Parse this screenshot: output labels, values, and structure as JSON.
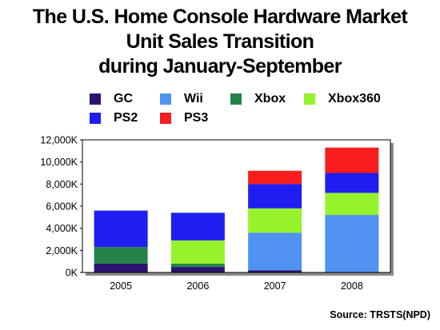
{
  "title_lines": [
    "The U.S. Home Console Hardware Market",
    "Unit Sales Transition",
    "during January-September"
  ],
  "source": "Source: TRSTS(NPD)",
  "chart_data": {
    "type": "bar",
    "stacked": true,
    "categories": [
      "2005",
      "2006",
      "2007",
      "2008"
    ],
    "y_unit_suffix": "K",
    "ylim": [
      0,
      12000
    ],
    "yticks": [
      0,
      2000,
      4000,
      6000,
      8000,
      10000,
      12000
    ],
    "ytick_labels": [
      "0K",
      "2,000K",
      "4,000K",
      "6,000K",
      "8,000K",
      "10,000K",
      "12,000K"
    ],
    "grid": false,
    "legend_position": "top",
    "series": [
      {
        "name": "GC",
        "color": "#2a1470",
        "values": [
          800,
          500,
          200,
          0
        ]
      },
      {
        "name": "Wii",
        "color": "#4f92f0",
        "values": [
          0,
          0,
          3400,
          5200
        ]
      },
      {
        "name": "Xbox",
        "color": "#24824a",
        "values": [
          1500,
          300,
          0,
          0
        ]
      },
      {
        "name": "Xbox360",
        "color": "#96f22b",
        "values": [
          0,
          2100,
          2200,
          2000
        ]
      },
      {
        "name": "PS2",
        "color": "#1f1ef0",
        "values": [
          3300,
          2500,
          2200,
          1800
        ]
      },
      {
        "name": "PS3",
        "color": "#f91d1d",
        "values": [
          0,
          0,
          1200,
          2300
        ]
      }
    ]
  }
}
